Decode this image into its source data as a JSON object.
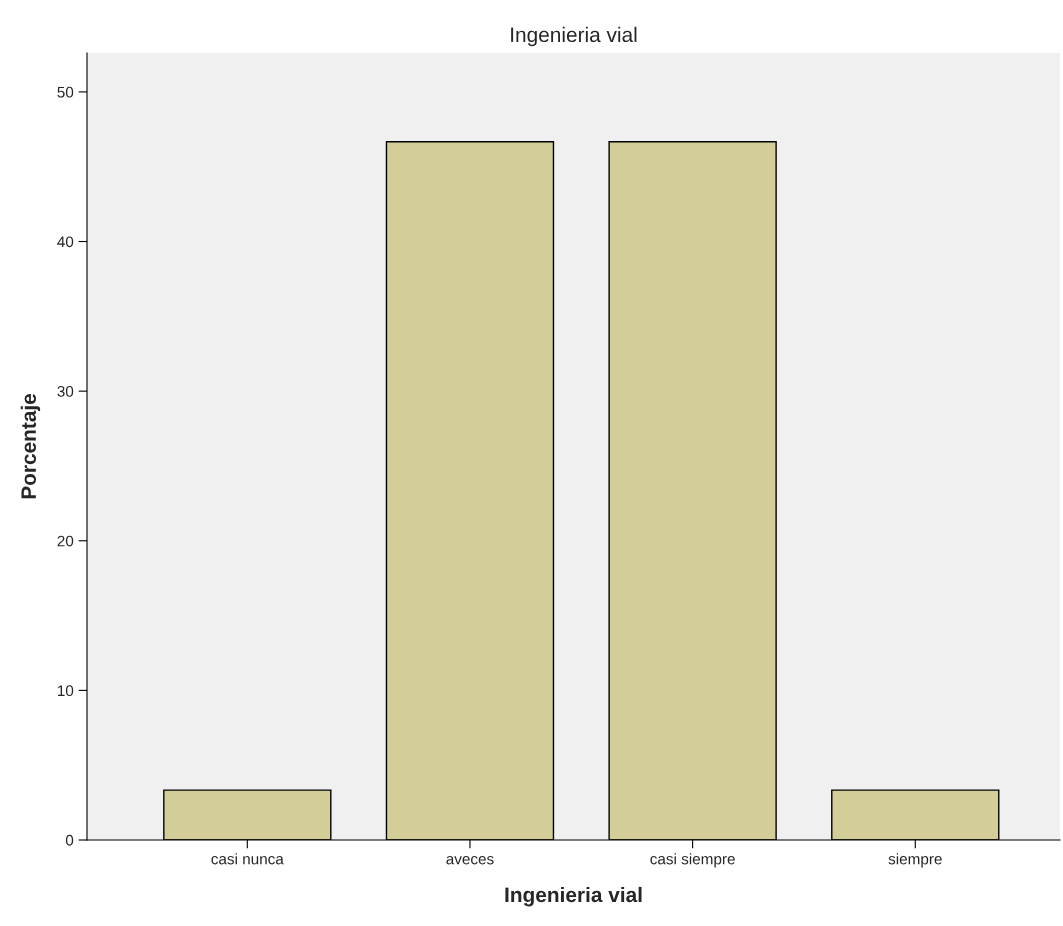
{
  "chart_data": {
    "type": "bar",
    "title": "Ingenieria vial",
    "xlabel": "Ingenieria vial",
    "ylabel": "Porcentaje",
    "categories": [
      "casi nunca",
      "aveces",
      "casi siempre",
      "siempre"
    ],
    "values": [
      3.33,
      46.67,
      46.67,
      3.33
    ],
    "color": "#d3ce97",
    "ylim": [
      0,
      52.6
    ],
    "yticks": [
      0,
      10,
      20,
      30,
      40,
      50
    ],
    "grid": false
  }
}
